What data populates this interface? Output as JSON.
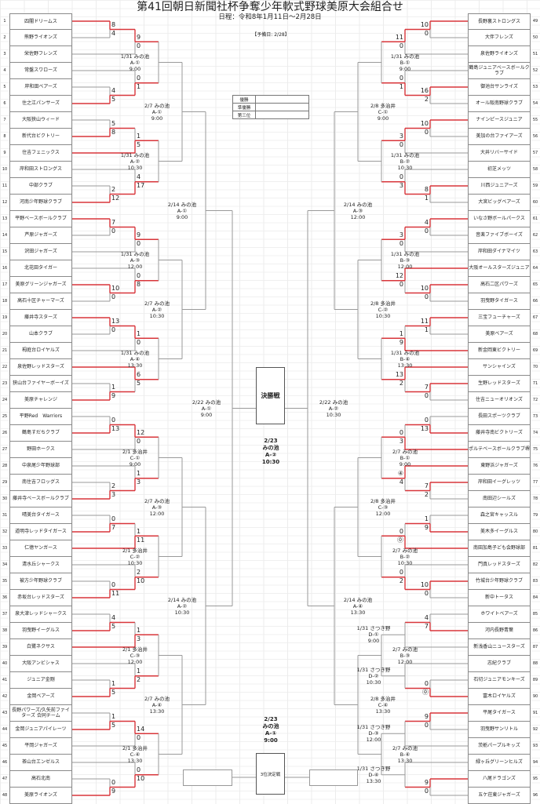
{
  "title": "第41回朝日新聞社杯争奪少年軟式野球美原大会組合せ",
  "schedule": "日程：令和8年1月11日～2月28日",
  "reserve_day": "【予備日: 2/28】",
  "results_table": [
    {
      "label": "優勝",
      "value": ""
    },
    {
      "label": "準優勝",
      "value": ""
    },
    {
      "label": "第三位",
      "value": ""
    }
  ],
  "final": {
    "label": "決勝戦",
    "info": [
      "2/23",
      "みの池",
      "A-②",
      "10:30"
    ]
  },
  "third_place": {
    "label": "3位決定戦",
    "info": [
      "2/23",
      "みの池",
      "A-①",
      "9:00"
    ]
  },
  "colors": {
    "winner_line": "#d8353a",
    "line": "#9a9a9a"
  },
  "left": {
    "teams": [
      {
        "no": "1",
        "name": "四闇ドリームス"
      },
      {
        "no": "2",
        "name": "熊野ライオンズ"
      },
      {
        "no": "3",
        "name": "栄佐野フレンズ"
      },
      {
        "no": "4",
        "name": "常盤スワローズ"
      },
      {
        "no": "5",
        "name": "岸和田ベアーズ"
      },
      {
        "no": "6",
        "name": "住之江パンサーズ"
      },
      {
        "no": "7",
        "name": "大阪狭山ウィード"
      },
      {
        "no": "8",
        "name": "新代台ビクトリー"
      },
      {
        "no": "9",
        "name": "住吉フェニックス"
      },
      {
        "no": "10",
        "name": "岸和田ストロングス"
      },
      {
        "no": "11",
        "name": "中部クラブ"
      },
      {
        "no": "12",
        "name": "河南少年野球クラブ"
      },
      {
        "no": "13",
        "name": "平野ベースボールクラブ"
      },
      {
        "no": "14",
        "name": "芦原ジャガーズ"
      },
      {
        "no": "15",
        "name": "沢田ジャガーズ"
      },
      {
        "no": "16",
        "name": "北花田タイガー"
      },
      {
        "no": "17",
        "name": "美原グリーンジャガーズ"
      },
      {
        "no": "18",
        "name": "高石十区チャーマーズ"
      },
      {
        "no": "19",
        "name": "藤井寺スターズ"
      },
      {
        "no": "20",
        "name": "山本クラブ"
      },
      {
        "no": "21",
        "name": "栂庭台ロイヤルズ"
      },
      {
        "no": "22",
        "name": "泉佐野レッドスターズ"
      },
      {
        "no": "23",
        "name": "狭山台ファイヤーボーイズ"
      },
      {
        "no": "24",
        "name": "美原チャレンジ"
      },
      {
        "no": "25",
        "name": "平野Red　Warriors"
      },
      {
        "no": "26",
        "name": "鶴島すだちクラブ"
      },
      {
        "no": "27",
        "name": "野田ホークス"
      },
      {
        "no": "28",
        "name": "中泉尾少年野球部"
      },
      {
        "no": "29",
        "name": "南住吉フロッグス"
      },
      {
        "no": "30",
        "name": "藤井寺ベースボールクラブ"
      },
      {
        "no": "31",
        "name": "晴美台タイガース"
      },
      {
        "no": "32",
        "name": "道明寺レッドタイガース"
      },
      {
        "no": "33",
        "name": "仁徳ヤンガース"
      },
      {
        "no": "34",
        "name": "清水丘シャークス"
      },
      {
        "no": "35",
        "name": "被方少年野球クラブ"
      },
      {
        "no": "36",
        "name": "赤坂台レッドスターズ"
      },
      {
        "no": "37",
        "name": "泉大津レッドシャークス"
      },
      {
        "no": "38",
        "name": "羽曳野イーグルス"
      },
      {
        "no": "39",
        "name": "白鷺ネクサス"
      },
      {
        "no": "40",
        "name": "大阪アンビシャス"
      },
      {
        "no": "41",
        "name": "ジュニア金剛"
      },
      {
        "no": "42",
        "name": "金岡ベアーズ"
      },
      {
        "no": "43",
        "name": "長野パワーズ/久矢前ファイターズ 合同チーム"
      },
      {
        "no": "44",
        "name": "金岡ジュニアパイレーツ"
      },
      {
        "no": "45",
        "name": "平岡ジャガーズ"
      },
      {
        "no": "46",
        "name": "茶山台エンゼルス"
      },
      {
        "no": "47",
        "name": "高石北南"
      },
      {
        "no": "48",
        "name": "美原ライオンズ"
      }
    ],
    "groups": [
      {
        "scores": {
          "r1a": [
            "8",
            "4"
          ],
          "r2a": [
            "9",
            "0"
          ],
          "r1b": [
            "4",
            "5"
          ],
          "r2b": [
            "0",
            "1"
          ]
        },
        "label": [
          "1/31 みの池",
          "A-①",
          "9:00"
        ]
      },
      {
        "scores": {
          "r1a": [
            "5",
            "8"
          ],
          "r2a": [
            "1",
            "5"
          ],
          "r1b": [
            "2",
            "12"
          ],
          "r2b": [
            "4",
            "17"
          ]
        },
        "label": [
          "1/31 みの池",
          "A-②",
          "10:30"
        ]
      },
      {
        "scores": {
          "r1a": [
            "7",
            "0"
          ],
          "r2a": [
            "9",
            "0"
          ],
          "r1b": [
            "10",
            "0"
          ],
          "r2b": [
            "0",
            "8"
          ]
        },
        "label": [
          "1/31 みの池",
          "A-③",
          "12:00"
        ]
      },
      {
        "scores": {
          "r1a": [
            "13",
            "0"
          ],
          "r2a": [
            "1",
            "0"
          ],
          "r1b": [
            "1",
            "9"
          ],
          "r2b": [
            "6",
            "5"
          ]
        },
        "label": [
          "1/31 みの池",
          "A-④",
          "13:30"
        ]
      },
      {
        "scores": {
          "r1a": [
            "0",
            "13"
          ],
          "r2a": [
            "12",
            "0"
          ],
          "r1b": [
            "2",
            "3"
          ],
          "r2b": [
            "1",
            "3"
          ]
        },
        "label": [
          "2/1 多治井",
          "C-①",
          "9:00"
        ]
      },
      {
        "scores": {
          "r1a": [
            "0",
            "7"
          ],
          "r2a": [
            "1",
            "11"
          ],
          "r1b": [
            "0",
            "11"
          ],
          "r2b": [
            "2",
            "10"
          ]
        },
        "label": [
          "2/1 多治井",
          "C-②",
          "10:30"
        ]
      },
      {
        "scores": {
          "r1a": [
            "4",
            "5"
          ],
          "r2a": [
            "1",
            "3"
          ],
          "r1b": [
            "1",
            "5"
          ],
          "r2b": [
            "1",
            "2"
          ]
        },
        "label": [
          "2/1 多治井",
          "C-③",
          "12:00"
        ]
      },
      {
        "scores": {
          "r1a": [
            "1",
            "5"
          ],
          "r2a": [
            "14",
            "0"
          ],
          "r1b": [
            "0",
            "9"
          ],
          "r2b": [
            "0",
            "10"
          ]
        },
        "label": [
          "2/1 多治井",
          "C-④",
          "13:30"
        ]
      }
    ],
    "r4_labels": [
      [
        "2/7 みの池",
        "A-①",
        "9:00"
      ],
      [
        "2/7 みの池",
        "A-②",
        "10:30"
      ],
      [
        "2/7 みの池",
        "A-③",
        "12:00"
      ],
      [
        "2/7 みの池",
        "A-④",
        "13:30"
      ]
    ],
    "r5_labels": [
      [
        "2/14 みの池",
        "A-①",
        "9:00"
      ],
      [
        "2/14 みの池",
        "A-②",
        "10:30"
      ]
    ],
    "r6_label": [
      "2/22 みの池",
      "A-①",
      "9:00"
    ]
  },
  "right": {
    "teams": [
      {
        "no": "49",
        "name": "長野裏ストロングス"
      },
      {
        "no": "50",
        "name": "大伴フレンズ"
      },
      {
        "no": "51",
        "name": "泉佐野ライオンズ"
      },
      {
        "no": "52",
        "name": "鶴島ジュニアベースボールクラブ"
      },
      {
        "no": "53",
        "name": "御池台サンライズ"
      },
      {
        "no": "54",
        "name": "オール阪南野球クラブ"
      },
      {
        "no": "55",
        "name": "ナインピースジュニア"
      },
      {
        "no": "56",
        "name": "美加の台ファイアーズ"
      },
      {
        "no": "57",
        "name": "大井リバーサイド"
      },
      {
        "no": "58",
        "name": "初芝メッツ"
      },
      {
        "no": "59",
        "name": "川西ジュニアーズ"
      },
      {
        "no": "60",
        "name": "大宮ビッグベアーズ"
      },
      {
        "no": "61",
        "name": "いなさ野ボールパークス"
      },
      {
        "no": "62",
        "name": "音楽ファイブボーイズ"
      },
      {
        "no": "63",
        "name": "岸和田ダイナマイツ"
      },
      {
        "no": "64",
        "name": "大阪オールスターズジュニア"
      },
      {
        "no": "65",
        "name": "高石二区パワーズ"
      },
      {
        "no": "66",
        "name": "羽曳野タイガース"
      },
      {
        "no": "67",
        "name": "三宝フューチャーズ"
      },
      {
        "no": "68",
        "name": "美原ベアーズ"
      },
      {
        "no": "69",
        "name": "新金岡東ビクトリー"
      },
      {
        "no": "70",
        "name": "サンシャインズ"
      },
      {
        "no": "71",
        "name": "生野レッドスターズ"
      },
      {
        "no": "72",
        "name": "住吉ニューオリオンズ"
      },
      {
        "no": "73",
        "name": "長田スポーツクラブ"
      },
      {
        "no": "74",
        "name": "藤井寺南ビクトリーズ"
      },
      {
        "no": "75",
        "name": "ポルテベースボールクラブ堺"
      },
      {
        "no": "76",
        "name": "東野浜ジャガーズ"
      },
      {
        "no": "77",
        "name": "岸和田イーグレッツ"
      },
      {
        "no": "78",
        "name": "南田辺シールズ"
      },
      {
        "no": "79",
        "name": "森之宮キャッスル"
      },
      {
        "no": "80",
        "name": "美木多イーグルス"
      },
      {
        "no": "81",
        "name": "南田加島子ども会野球部"
      },
      {
        "no": "82",
        "name": "門真レッドスターズ"
      },
      {
        "no": "83",
        "name": "竹城台少年野球クラブ"
      },
      {
        "no": "84",
        "name": "新中トータス"
      },
      {
        "no": "85",
        "name": "ホワイトベアーズ"
      },
      {
        "no": "86",
        "name": "河内長野青葉"
      },
      {
        "no": "87",
        "name": "新浅香山ニュースターズ"
      },
      {
        "no": "88",
        "name": "志紀クラブ"
      },
      {
        "no": "89",
        "name": "石切ジュニアモンキーズ"
      },
      {
        "no": "90",
        "name": "富木ロイヤルズ"
      },
      {
        "no": "91",
        "name": "平尾タイガース"
      },
      {
        "no": "92",
        "name": "羽曳野サンリトル"
      },
      {
        "no": "93",
        "name": "茨栃パープルキッズ"
      },
      {
        "no": "94",
        "name": "緑ヶ丘グリーンヒルズ"
      },
      {
        "no": "95",
        "name": "八尾ドラゴンズ"
      },
      {
        "no": "96",
        "name": "五ケ荘東ジャガーズ"
      }
    ],
    "groups": [
      {
        "scores": {
          "r1a": [
            "10",
            "0"
          ],
          "r2a": [
            "11",
            "0"
          ],
          "r1b": [
            "16",
            "2"
          ],
          "r2b": [
            "0",
            "1"
          ]
        },
        "label": [
          "1/31 みの池",
          "B-①",
          "9:00"
        ]
      },
      {
        "scores": {
          "r1a": [
            "10",
            "0"
          ],
          "r2a": [
            "3",
            "0"
          ],
          "r1b": [
            "8",
            "1"
          ],
          "r2b": [
            "0",
            "3"
          ]
        },
        "label": [
          "1/31 みの池",
          "B-②",
          "10:30"
        ]
      },
      {
        "scores": {
          "r1a": [
            "4",
            "0"
          ],
          "r2a": [
            "3",
            "0"
          ],
          "r1b": [
            "10",
            "0"
          ],
          "r2b": [
            "12",
            "0"
          ]
        },
        "label": [
          "1/31 みの池",
          "B-③",
          "12:00"
        ]
      },
      {
        "scores": {
          "r1a": [
            "11",
            "1"
          ],
          "r2a": [
            "1",
            "9"
          ],
          "r1b": [
            "7",
            "0"
          ],
          "r2b": [
            "13",
            "2"
          ]
        },
        "label": [
          "1/31 みの池",
          "B-④",
          "13:30"
        ]
      },
      {
        "scores": {
          "r1a": [
            "0",
            "13"
          ],
          "r2a": [
            "0",
            "3"
          ],
          "r1b": [
            "7",
            "2"
          ],
          "r2b": [
            "④",
            "4"
          ]
        },
        "label": [
          "2/7 みの池",
          "B-①",
          "9:00"
        ]
      },
      {
        "scores": {
          "r1a": [
            "1",
            "9"
          ],
          "r2a": [
            "0",
            "⓪"
          ],
          "r1b": [
            "10",
            "0"
          ],
          "r2b": [
            "0",
            "2"
          ]
        },
        "label": [
          "2/7 みの池",
          "B-②",
          "10:30"
        ]
      },
      {
        "scores": {
          "r1a": [
            "4",
            "7"
          ],
          "r2a": [
            null,
            null
          ],
          "r1b": [
            "0",
            "⓪"
          ],
          "r2b": [
            null,
            null
          ]
        },
        "label": [
          "2/7 みの池",
          "B-③",
          "12:00"
        ],
        "r2a_label": [
          "1/31 さつき野",
          "D-①",
          "9:00"
        ],
        "r2b_label": [
          "1/31 さつき野",
          "D-②",
          "10:30"
        ]
      },
      {
        "scores": {
          "r1a": [
            "9",
            "0"
          ],
          "r2a": [
            null,
            null
          ],
          "r1b": [
            "9",
            "0"
          ],
          "r2b": [
            null,
            null
          ]
        },
        "label": [
          "2/7 みの池",
          "B-④",
          "13:30"
        ],
        "r2a_label": [
          "1/31 さつき野",
          "D-③",
          "12:00"
        ],
        "r2b_label": [
          "1/31 さつき野",
          "D-④",
          "13:30"
        ]
      }
    ],
    "r4_labels": [
      [
        "2/8 多治井",
        "C-①",
        "9:00"
      ],
      [
        "2/8 多治井",
        "C-②",
        "10:30"
      ],
      [
        "2/8 多治井",
        "C-③",
        "12:00"
      ],
      [
        "2/8 多治井",
        "C-④",
        "13:30"
      ]
    ],
    "r5_labels": [
      [
        "2/14 みの池",
        "A-③",
        "12:00"
      ],
      [
        "2/14 みの池",
        "A-④",
        "13:30"
      ]
    ],
    "r6_label": [
      "2/22 みの池",
      "A-②",
      "10:30"
    ]
  }
}
